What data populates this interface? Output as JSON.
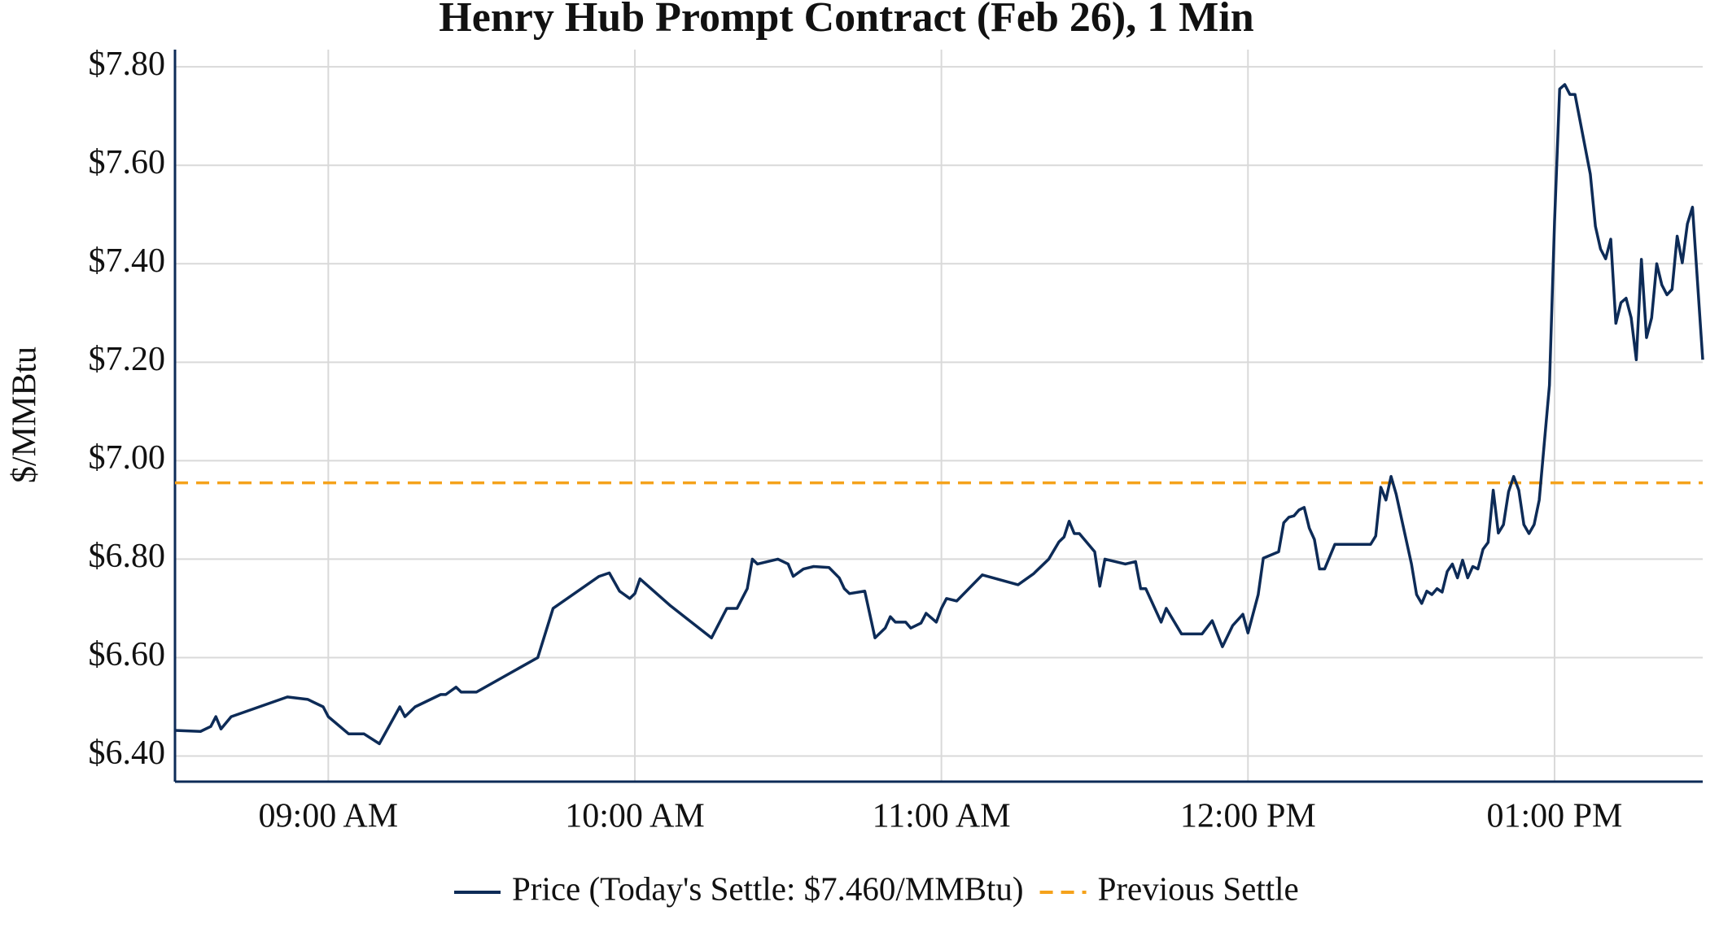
{
  "chart_data": {
    "type": "line",
    "title": "Henry Hub Prompt Contract (Feb 26), 1 Min",
    "ylabel": "$/MMBtu",
    "x": [
      "08:30",
      "08:35",
      "08:37",
      "08:38",
      "08:39",
      "08:41",
      "08:52",
      "08:56",
      "08:59",
      "09:00",
      "09:04",
      "09:07",
      "09:10",
      "09:14",
      "09:15",
      "09:17",
      "09:22",
      "09:23",
      "09:25",
      "09:26",
      "09:29",
      "09:41",
      "09:44",
      "09:53",
      "09:55",
      "09:57",
      "09:59",
      "10:00",
      "10:01",
      "10:07",
      "10:15",
      "10:18",
      "10:20",
      "10:22",
      "10:23",
      "10:24",
      "10:28",
      "10:30",
      "10:31",
      "10:33",
      "10:35",
      "10:38",
      "10:40",
      "10:41",
      "10:42",
      "10:45",
      "10:47",
      "10:49",
      "10:50",
      "10:51",
      "10:53",
      "10:54",
      "10:56",
      "10:57",
      "10:59",
      "11:00",
      "11:01",
      "11:03",
      "11:08",
      "11:15",
      "11:18",
      "11:21",
      "11:23",
      "11:24",
      "11:25",
      "11:26",
      "11:27",
      "11:30",
      "11:31",
      "11:32",
      "11:36",
      "11:38",
      "11:39",
      "11:40",
      "11:43",
      "11:44",
      "11:47",
      "11:51",
      "11:53",
      "11:55",
      "11:57",
      "11:59",
      "12:00",
      "12:02",
      "12:03",
      "12:06",
      "12:07",
      "12:08",
      "12:09",
      "12:10",
      "12:11",
      "12:12",
      "12:13",
      "12:14",
      "12:15",
      "12:17",
      "12:24",
      "12:25",
      "12:26",
      "12:27",
      "12:28",
      "12:29",
      "12:32",
      "12:33",
      "12:34",
      "12:35",
      "12:36",
      "12:37",
      "12:38",
      "12:39",
      "12:40",
      "12:41",
      "12:42",
      "12:43",
      "12:44",
      "12:45",
      "12:46",
      "12:47",
      "12:48",
      "12:49",
      "12:50",
      "12:51",
      "12:52",
      "12:53",
      "12:54",
      "12:55",
      "12:56",
      "12:57",
      "12:59",
      "13:00",
      "13:01",
      "13:02",
      "13:03",
      "13:04",
      "13:07",
      "13:08",
      "13:09",
      "13:10",
      "13:11",
      "13:12",
      "13:13",
      "13:14",
      "13:15",
      "13:16",
      "13:17",
      "13:18",
      "13:19",
      "13:20",
      "13:21",
      "13:22",
      "13:23",
      "13:24",
      "13:25",
      "13:26",
      "13:27",
      "13:29"
    ],
    "series": [
      {
        "name": "Price (Today's Settle: $7.460/MMBtu)",
        "color": "#0d2b57",
        "values": [
          6.452,
          6.45,
          6.46,
          6.48,
          6.455,
          6.48,
          6.52,
          6.515,
          6.5,
          6.48,
          6.445,
          6.445,
          6.425,
          6.5,
          6.48,
          6.5,
          6.525,
          6.525,
          6.54,
          6.53,
          6.53,
          6.6,
          6.7,
          6.765,
          6.772,
          6.735,
          6.72,
          6.73,
          6.76,
          6.705,
          6.64,
          6.7,
          6.7,
          6.74,
          6.8,
          6.79,
          6.8,
          6.79,
          6.765,
          6.78,
          6.785,
          6.783,
          6.762,
          6.74,
          6.73,
          6.735,
          6.64,
          6.66,
          6.683,
          6.672,
          6.672,
          6.66,
          6.67,
          6.69,
          6.672,
          6.7,
          6.72,
          6.715,
          6.768,
          6.748,
          6.77,
          6.8,
          6.835,
          6.845,
          6.877,
          6.852,
          6.852,
          6.815,
          6.745,
          6.8,
          6.79,
          6.795,
          6.74,
          6.74,
          6.672,
          6.7,
          6.648,
          6.648,
          6.675,
          6.622,
          6.665,
          6.688,
          6.65,
          6.728,
          6.802,
          6.815,
          6.874,
          6.885,
          6.888,
          6.9,
          6.905,
          6.863,
          6.84,
          6.78,
          6.78,
          6.83,
          6.83,
          6.847,
          6.946,
          6.92,
          6.968,
          6.932,
          6.79,
          6.728,
          6.71,
          6.735,
          6.728,
          6.74,
          6.733,
          6.775,
          6.79,
          6.762,
          6.798,
          6.762,
          6.785,
          6.78,
          6.82,
          6.834,
          6.94,
          6.853,
          6.87,
          6.937,
          6.968,
          6.94,
          6.87,
          6.852,
          6.87,
          6.92,
          7.153,
          7.485,
          7.755,
          7.764,
          7.744,
          7.744,
          7.582,
          7.476,
          7.43,
          7.41,
          7.45,
          7.279,
          7.321,
          7.33,
          7.29,
          7.205,
          7.409,
          7.25,
          7.29,
          7.4,
          7.357,
          7.337,
          7.348,
          7.456,
          7.402,
          7.481,
          7.515,
          7.205
        ]
      }
    ],
    "reference_lines": [
      {
        "name": "Previous Settle",
        "value": 6.955,
        "color": "#f5a21b",
        "dash": true
      }
    ],
    "xlim": [
      "08:30",
      "13:29"
    ],
    "xticks": [
      {
        "value": "09:00",
        "label": "09:00 AM"
      },
      {
        "value": "10:00",
        "label": "10:00 AM"
      },
      {
        "value": "11:00",
        "label": "11:00 AM"
      },
      {
        "value": "12:00",
        "label": "12:00 PM"
      },
      {
        "value": "13:00",
        "label": "01:00 PM"
      }
    ],
    "ylim": [
      6.348,
      7.835
    ],
    "yticks": [
      {
        "value": 6.4,
        "label": "$6.40"
      },
      {
        "value": 6.6,
        "label": "$6.60"
      },
      {
        "value": 6.8,
        "label": "$6.80"
      },
      {
        "value": 7.0,
        "label": "$7.00"
      },
      {
        "value": 7.2,
        "label": "$7.20"
      },
      {
        "value": 7.4,
        "label": "$7.40"
      },
      {
        "value": 7.6,
        "label": "$7.60"
      },
      {
        "value": 7.8,
        "label": "$7.80"
      }
    ],
    "grid": true,
    "legend": "bottom"
  }
}
